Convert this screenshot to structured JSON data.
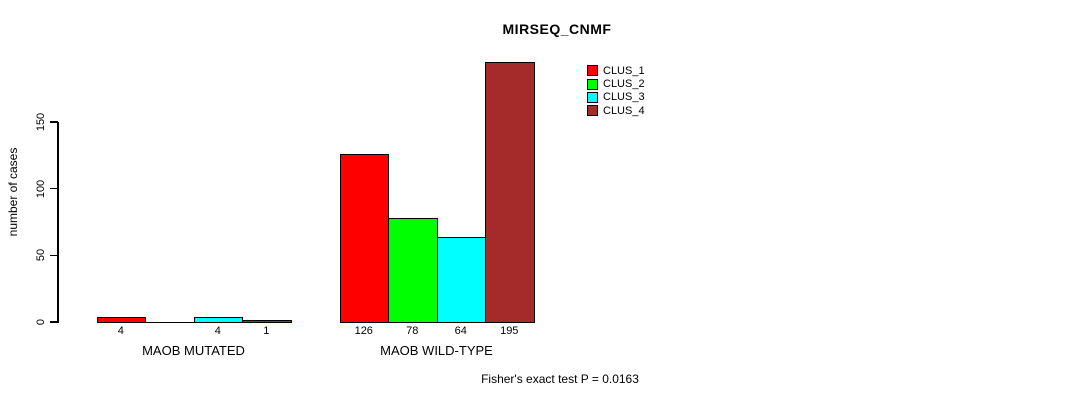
{
  "chart_data": {
    "type": "bar",
    "title": "MIRSEQ_CNMF",
    "ylabel": "number of cases",
    "xlabel": "",
    "ylim": [
      0,
      150
    ],
    "yticks": [
      "0",
      "50",
      "100",
      "150"
    ],
    "grid": false,
    "legend_position": "top-right",
    "categories": [
      "MAOB MUTATED",
      "MAOB WILD-TYPE"
    ],
    "series": [
      {
        "name": "CLUS_1",
        "color": "#ff0000",
        "values": [
          4,
          126
        ]
      },
      {
        "name": "CLUS_2",
        "color": "#00ff00",
        "values": [
          0,
          78
        ]
      },
      {
        "name": "CLUS_3",
        "color": "#00ffff",
        "values": [
          4,
          64
        ]
      },
      {
        "name": "CLUS_4",
        "color": "#a52a2a",
        "values": [
          1,
          195
        ]
      }
    ],
    "bar_value_labels": [
      [
        "4",
        "",
        "4",
        "1"
      ],
      [
        "126",
        "78",
        "64",
        "195"
      ]
    ],
    "footnote": "Fisher's exact test P = 0.0163",
    "colors": {
      "axis": "#000000",
      "background": "#ffffff"
    }
  }
}
